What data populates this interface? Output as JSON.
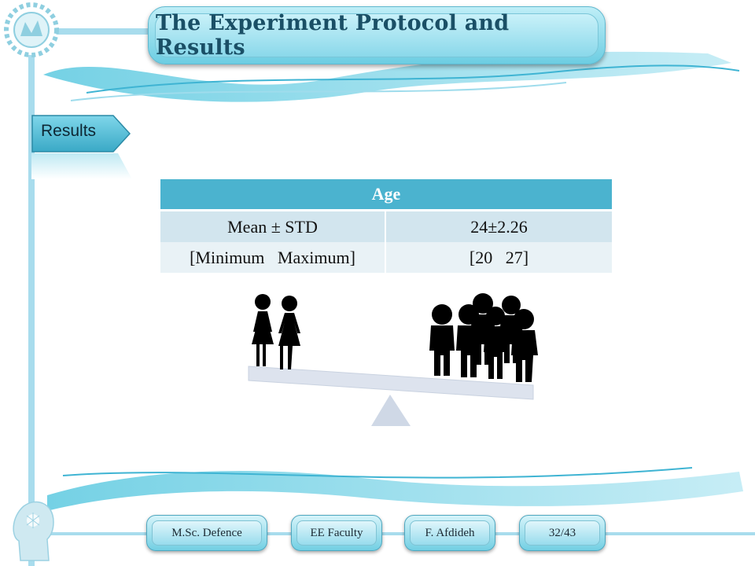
{
  "header": {
    "title": "The Experiment Protocol and Results"
  },
  "section": {
    "label": "Results"
  },
  "age_table": {
    "header": "Age",
    "rows": [
      {
        "label": "Mean ± STD",
        "value": "24±2.26"
      },
      {
        "label": "[Minimum   Maximum]",
        "value": "[20   27]"
      }
    ]
  },
  "footer": {
    "degree": "M.Sc. Defence",
    "faculty": "EE Faculty",
    "author": "F. Afdideh",
    "page": "32/43"
  },
  "illustration": {
    "left_icons": [
      "woman-icon",
      "woman-icon"
    ],
    "right_icons": [
      "man-icon",
      "man-icon",
      "man-icon",
      "man-icon",
      "man-icon",
      "man-icon",
      "man-icon"
    ],
    "scale_tilt": "down-right"
  },
  "colors": {
    "accent": "#4bb3cf",
    "title_text": "#1a4f66"
  }
}
